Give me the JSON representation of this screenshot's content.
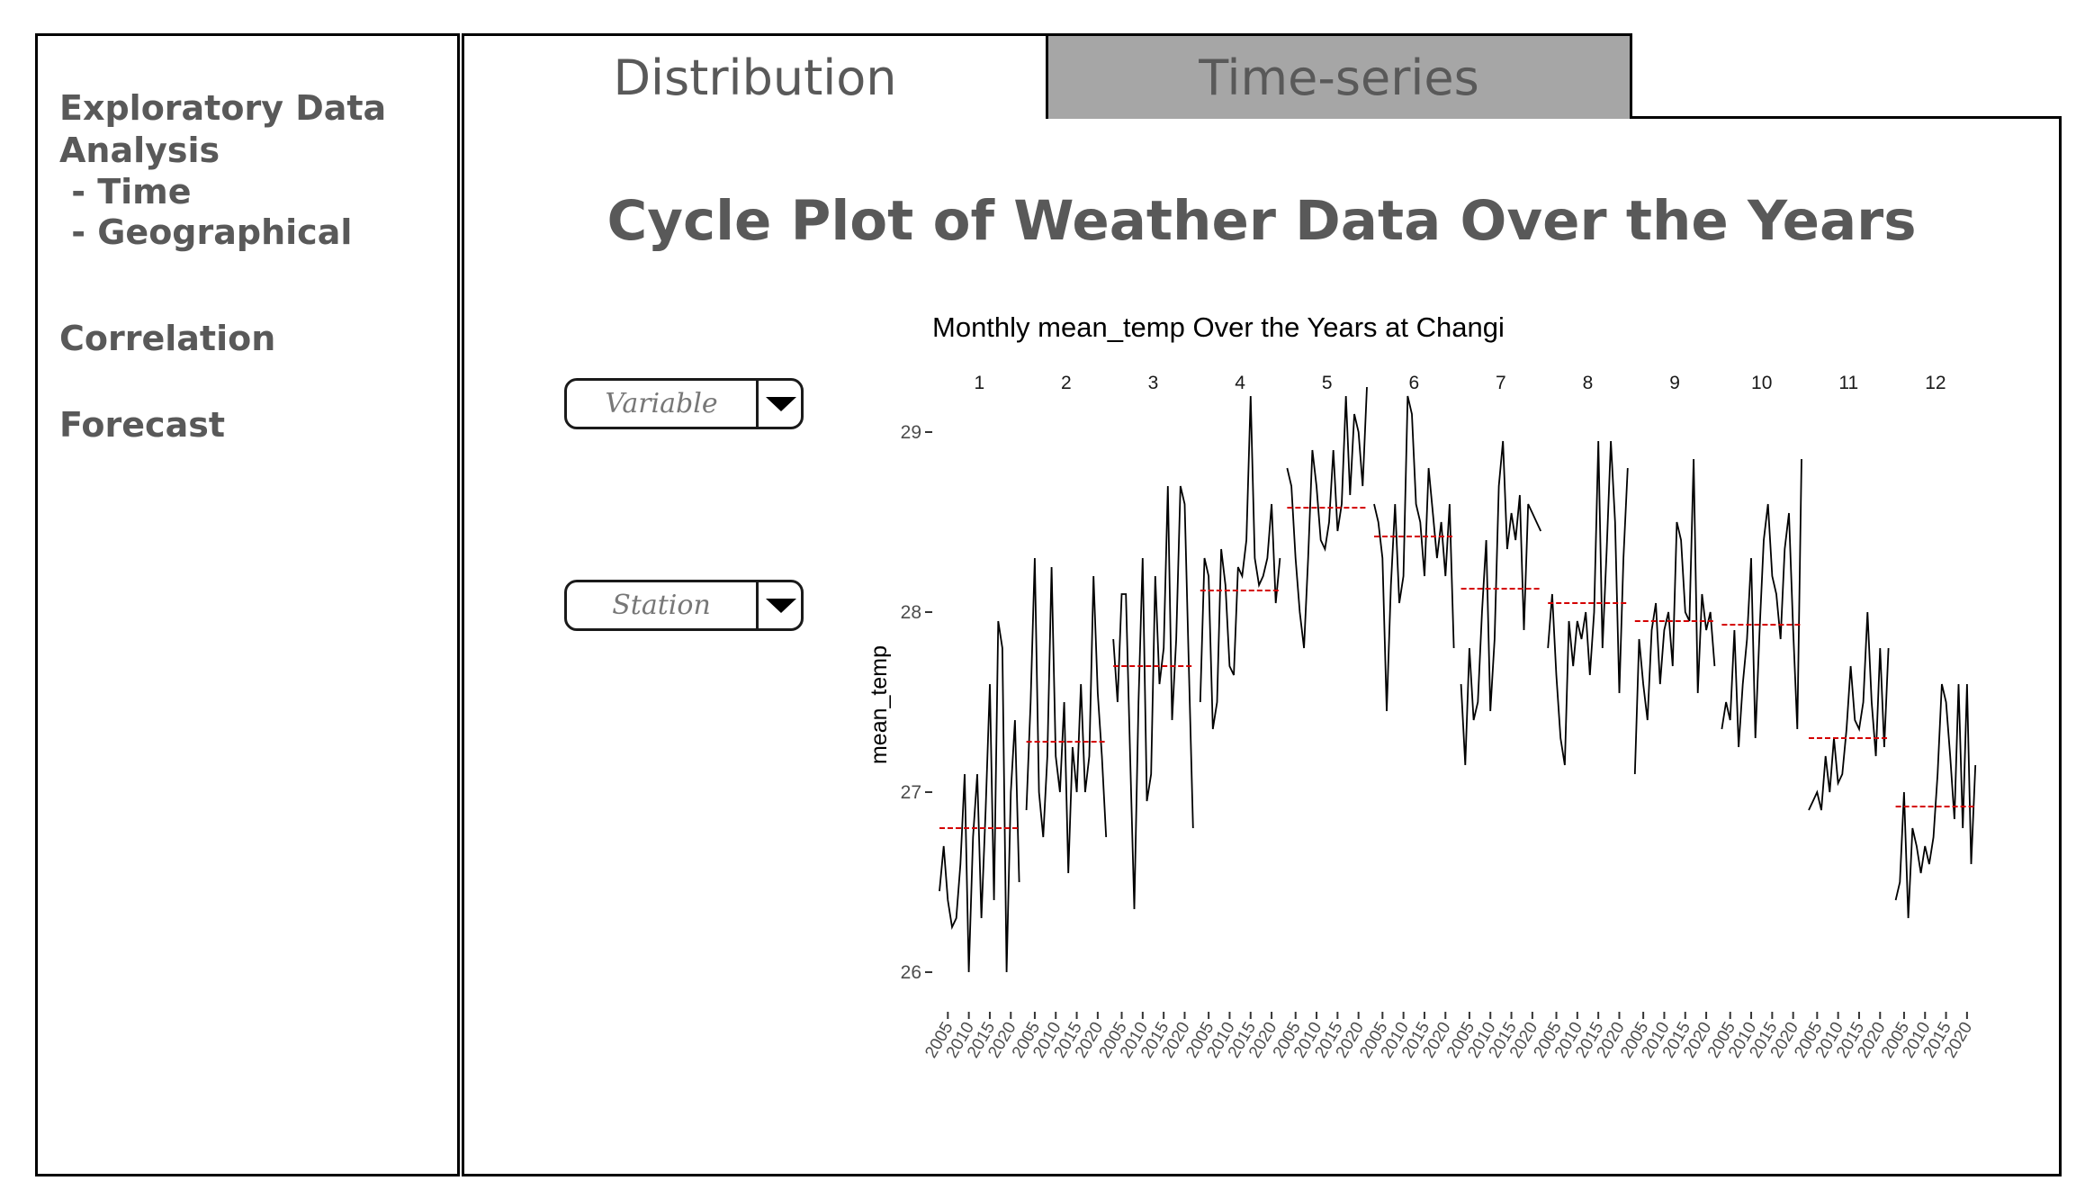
{
  "sidebar": {
    "eda_lines": [
      "Exploratory Data",
      "Analysis",
      " - Time",
      " - Geographical"
    ],
    "correlation": "Correlation",
    "forecast": "Forecast"
  },
  "tabs": [
    {
      "label": "Distribution",
      "selected": false
    },
    {
      "label": "Time-series",
      "selected": true
    }
  ],
  "page_title": "Cycle Plot of Weather Data Over the Years",
  "controls": {
    "variable": {
      "placeholder": "Variable"
    },
    "station": {
      "placeholder": "Station"
    }
  },
  "colors": {
    "text": "#595959",
    "selected_tab": "#a6a6a6",
    "mean_line": "#d40000",
    "series": "#000000"
  },
  "icons": {
    "dropdown": "caret-down-icon"
  },
  "chart_data": {
    "type": "line",
    "title": "Monthly mean_temp Over the Years at Changi",
    "ylabel": "mean_temp",
    "xlabel": "",
    "ylim": [
      25.8,
      29.4
    ],
    "yticks": [
      26,
      27,
      28,
      29
    ],
    "facets": [
      "1",
      "2",
      "3",
      "4",
      "5",
      "6",
      "7",
      "8",
      "9",
      "10",
      "11",
      "12"
    ],
    "xticks": [
      "2005",
      "2010",
      "2015",
      "2020"
    ],
    "x": [
      2003,
      2004,
      2005,
      2006,
      2007,
      2008,
      2009,
      2010,
      2011,
      2012,
      2013,
      2014,
      2015,
      2016,
      2017,
      2018,
      2019,
      2020,
      2021,
      2022
    ],
    "grid": false,
    "series": [
      {
        "month": "1",
        "mean": 26.8,
        "values": [
          26.45,
          26.7,
          26.4,
          26.25,
          26.3,
          26.6,
          27.1,
          26.0,
          26.75,
          27.1,
          26.3,
          26.9,
          27.6,
          26.4,
          27.95,
          27.8,
          26.0,
          27.0,
          27.4,
          26.5
        ]
      },
      {
        "month": "2",
        "mean": 27.28,
        "values": [
          26.9,
          27.5,
          28.3,
          27.0,
          26.75,
          27.2,
          28.25,
          27.2,
          27.0,
          27.5,
          26.55,
          27.25,
          27.0,
          27.6,
          27.0,
          27.2,
          28.2,
          27.55,
          27.2,
          26.75
        ]
      },
      {
        "month": "3",
        "mean": 27.7,
        "values": [
          27.85,
          27.5,
          28.1,
          28.1,
          27.2,
          26.35,
          27.5,
          28.3,
          26.95,
          27.1,
          28.2,
          27.6,
          27.8,
          28.7,
          27.4,
          27.85,
          28.7,
          28.6,
          27.7,
          26.8
        ]
      },
      {
        "month": "4",
        "mean": 28.12,
        "values": [
          27.5,
          28.3,
          28.2,
          27.35,
          27.5,
          28.35,
          28.15,
          27.7,
          27.65,
          28.25,
          28.2,
          28.4,
          29.2,
          28.3,
          28.15,
          28.2,
          28.3,
          28.6,
          28.05,
          28.3
        ]
      },
      {
        "month": "5",
        "mean": 28.58,
        "values": [
          28.8,
          28.7,
          28.3,
          28.0,
          27.8,
          28.3,
          28.9,
          28.7,
          28.4,
          28.35,
          28.5,
          28.9,
          28.45,
          28.6,
          29.2,
          28.65,
          29.1,
          29.0,
          28.7,
          29.25
        ]
      },
      {
        "month": "6",
        "mean": 28.42,
        "values": [
          28.6,
          28.5,
          28.3,
          27.45,
          28.15,
          28.6,
          28.05,
          28.2,
          29.2,
          29.1,
          28.6,
          28.5,
          28.2,
          28.8,
          28.55,
          28.3,
          28.5,
          28.2,
          28.6,
          27.8
        ]
      },
      {
        "month": "7",
        "mean": 28.13,
        "values": [
          27.6,
          27.15,
          27.8,
          27.4,
          27.5,
          28.0,
          28.4,
          27.45,
          27.85,
          28.7,
          28.95,
          28.35,
          28.55,
          28.4,
          28.65,
          27.9,
          28.6,
          28.55,
          28.5,
          28.45
        ]
      },
      {
        "month": "8",
        "mean": 28.05,
        "values": [
          27.8,
          28.1,
          27.65,
          27.3,
          27.15,
          27.95,
          27.7,
          27.95,
          27.85,
          28.0,
          27.65,
          28.0,
          28.95,
          27.8,
          28.35,
          28.95,
          28.5,
          27.55,
          28.3,
          28.8
        ]
      },
      {
        "month": "9",
        "mean": 27.95,
        "values": [
          27.1,
          27.85,
          27.6,
          27.4,
          27.9,
          28.05,
          27.6,
          27.9,
          28.0,
          27.7,
          28.5,
          28.4,
          28.0,
          27.95,
          28.85,
          27.55,
          28.1,
          27.9,
          28.0,
          27.7
        ]
      },
      {
        "month": "10",
        "mean": 27.93,
        "values": [
          27.35,
          27.5,
          27.4,
          27.9,
          27.25,
          27.6,
          27.85,
          28.3,
          27.3,
          27.9,
          28.4,
          28.6,
          28.2,
          28.1,
          27.85,
          28.35,
          28.55,
          27.9,
          27.35,
          28.85
        ]
      },
      {
        "month": "11",
        "mean": 27.3,
        "values": [
          26.9,
          26.95,
          27.0,
          26.9,
          27.2,
          27.0,
          27.3,
          27.05,
          27.1,
          27.35,
          27.7,
          27.4,
          27.35,
          27.5,
          28.0,
          27.5,
          27.2,
          27.8,
          27.25,
          27.8
        ]
      },
      {
        "month": "12",
        "mean": 26.92,
        "values": [
          26.4,
          26.5,
          27.0,
          26.3,
          26.8,
          26.7,
          26.55,
          26.7,
          26.6,
          26.75,
          27.1,
          27.6,
          27.5,
          27.2,
          26.85,
          27.6,
          26.8,
          27.6,
          26.6,
          27.15
        ]
      }
    ]
  }
}
